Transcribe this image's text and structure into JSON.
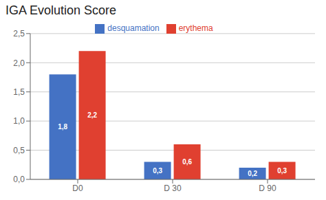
{
  "chart_data": {
    "type": "bar",
    "title": "IGA Evolution Score",
    "categories": [
      "D0",
      "D 30",
      "D 90"
    ],
    "series": [
      {
        "name": "desquamation",
        "color": "#4472C4",
        "values": [
          1.8,
          0.3,
          0.2
        ],
        "value_labels": [
          "1,8",
          "0,3",
          "0,2"
        ]
      },
      {
        "name": "erythema",
        "color": "#E04030",
        "values": [
          2.2,
          0.6,
          0.3
        ],
        "value_labels": [
          "2,2",
          "0,6",
          "0,3"
        ]
      }
    ],
    "ylim": [
      0,
      2.5
    ],
    "yticks": [
      {
        "value": 0.0,
        "label": "0,0"
      },
      {
        "value": 0.5,
        "label": "0,5"
      },
      {
        "value": 1.0,
        "label": "1,0"
      },
      {
        "value": 1.5,
        "label": "1,5"
      },
      {
        "value": 2.0,
        "label": "2,0"
      },
      {
        "value": 2.5,
        "label": "2,5"
      }
    ],
    "grid": true,
    "legend": "top",
    "data_labels": true
  }
}
